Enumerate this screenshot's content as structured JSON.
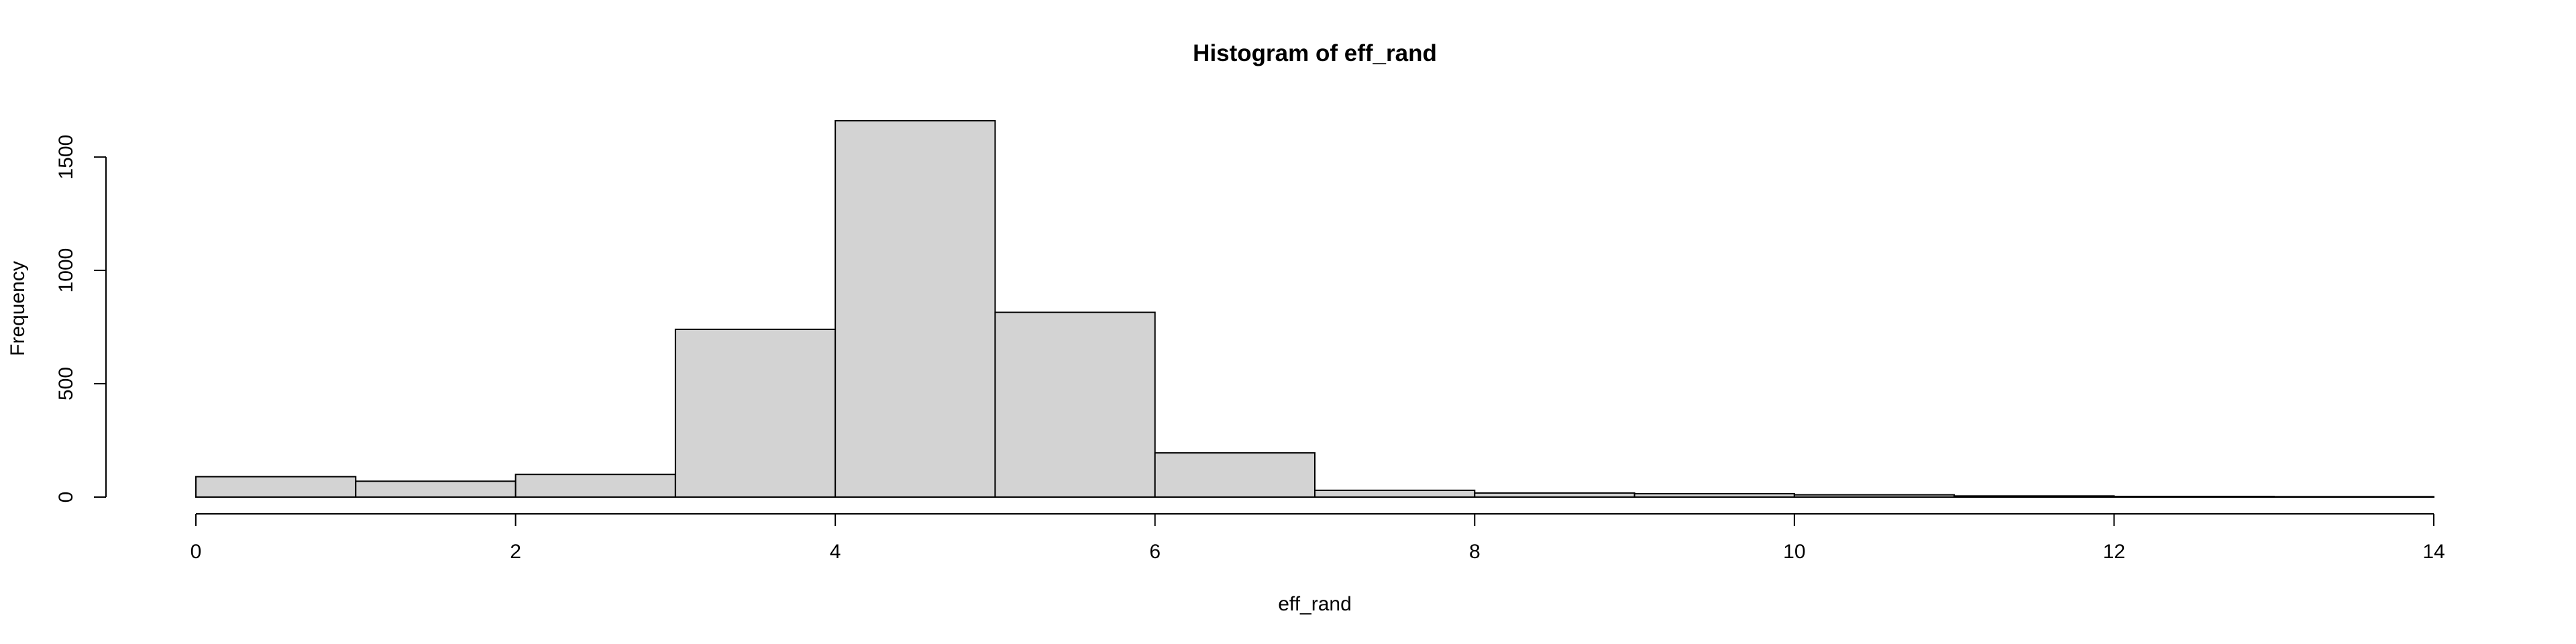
{
  "chart_data": {
    "type": "bar",
    "subtype": "histogram",
    "title": "Histogram of eff_rand",
    "xlabel": "eff_rand",
    "ylabel": "Frequency",
    "bin_edges": [
      0,
      1,
      2,
      3,
      4,
      5,
      6,
      7,
      8,
      9,
      10,
      11,
      12,
      13,
      14
    ],
    "values": [
      90,
      70,
      100,
      740,
      1660,
      815,
      195,
      30,
      18,
      15,
      10,
      5,
      3,
      2
    ],
    "xlim": [
      0,
      14
    ],
    "ylim": [
      0,
      1660
    ],
    "x_ticks": [
      0,
      2,
      4,
      6,
      8,
      10,
      12,
      14
    ],
    "y_ticks": [
      0,
      500,
      1000,
      1500
    ],
    "bar_color": "#d3d3d3",
    "edge_color": "#000000",
    "grid": false
  }
}
